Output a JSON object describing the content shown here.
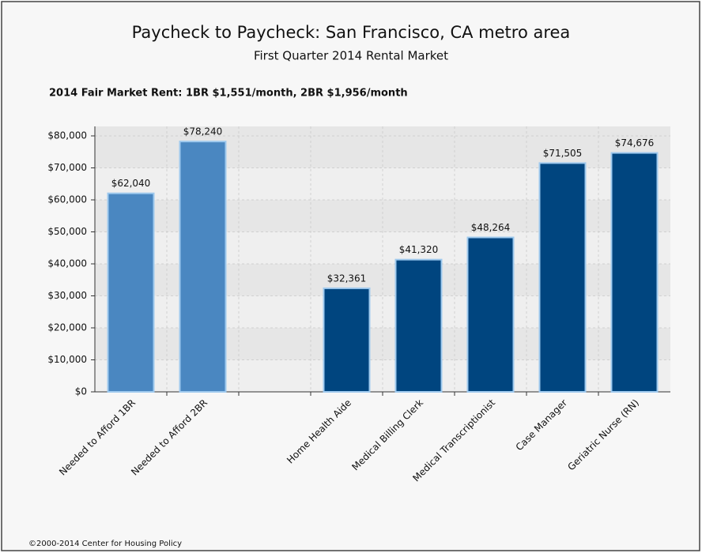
{
  "chart_data": {
    "type": "bar",
    "title": "Paycheck to Paycheck: San Francisco, CA metro area",
    "subtitle": "First Quarter 2014 Rental Market",
    "annotation": "2014 Fair Market Rent: 1BR $1,551/month, 2BR $1,956/month",
    "footer": "©2000-2014 Center for Housing Policy",
    "categories": [
      "Needed to Afford 1BR",
      "Needed to Afford 2BR",
      null,
      "Home Health Aide",
      "Medical Billing Clerk",
      "Medical Transcriptionist",
      "Case Manager",
      "Geriatric Nurse (RN)"
    ],
    "values": [
      62040,
      78240,
      null,
      32361,
      41320,
      48264,
      71505,
      74676
    ],
    "value_labels": [
      "$62,040",
      "$78,240",
      null,
      "$32,361",
      "$41,320",
      "$48,264",
      "$71,505",
      "$74,676"
    ],
    "colors": [
      "#4a87c1",
      "#4a87c1",
      null,
      "#00457f",
      "#00457f",
      "#00457f",
      "#00457f",
      "#00457f"
    ],
    "ylim": [
      0,
      80000
    ],
    "yticks": [
      {
        "value": 0,
        "label": "$0"
      },
      {
        "value": 10000,
        "label": "$10,000"
      },
      {
        "value": 20000,
        "label": "$20,000"
      },
      {
        "value": 30000,
        "label": "$30,000"
      },
      {
        "value": 40000,
        "label": "$40,000"
      },
      {
        "value": 50000,
        "label": "$50,000"
      },
      {
        "value": 60000,
        "label": "$60,000"
      },
      {
        "value": 70000,
        "label": "$70,000"
      },
      {
        "value": 80000,
        "label": "$80,000"
      }
    ],
    "grid": true
  }
}
